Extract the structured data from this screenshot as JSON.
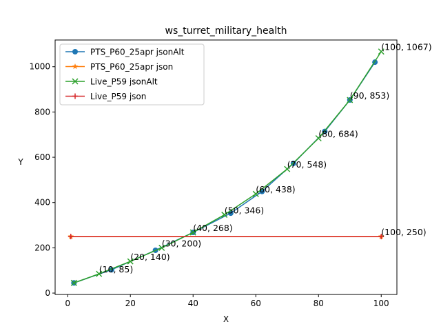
{
  "chart_data": {
    "type": "line",
    "title": "ws_turret_military_health",
    "xlabel": "X",
    "ylabel": "Y",
    "xlim": [
      -4,
      105
    ],
    "ylim": [
      -6,
      1118
    ],
    "xticks": [
      0,
      20,
      40,
      60,
      80,
      100
    ],
    "yticks": [
      0,
      200,
      400,
      600,
      800,
      1000
    ],
    "grid": false,
    "legend_position": "upper-left",
    "series": [
      {
        "name": "PTS_P60_25apr jsonAlt",
        "color": "#1f77b4",
        "marker": "circle",
        "x": [
          2,
          14,
          28,
          40,
          52,
          62,
          72,
          82,
          90,
          98
        ],
        "y": [
          45,
          103,
          189,
          268,
          353,
          449,
          573,
          714,
          853,
          1020
        ]
      },
      {
        "name": "PTS_P60_25apr json",
        "color": "#ff7f0e",
        "marker": "star",
        "x": [
          1,
          100
        ],
        "y": [
          250,
          250
        ]
      },
      {
        "name": "Live_P59 jsonAlt",
        "color": "#2ca02c",
        "marker": "x",
        "x": [
          2,
          10,
          20,
          30,
          40,
          50,
          60,
          70,
          80,
          90,
          100
        ],
        "y": [
          45,
          85,
          140,
          200,
          268,
          346,
          438,
          548,
          684,
          853,
          1067
        ]
      },
      {
        "name": "Live_P59 json",
        "color": "#d62728",
        "marker": "plus",
        "x": [
          1,
          100
        ],
        "y": [
          250,
          250
        ]
      }
    ],
    "annotations": [
      {
        "x": 10,
        "y": 85,
        "text": "(10, 85)"
      },
      {
        "x": 20,
        "y": 140,
        "text": "(20, 140)"
      },
      {
        "x": 30,
        "y": 200,
        "text": "(30, 200)"
      },
      {
        "x": 40,
        "y": 268,
        "text": "(40, 268)"
      },
      {
        "x": 50,
        "y": 346,
        "text": "(50, 346)"
      },
      {
        "x": 60,
        "y": 438,
        "text": "(60, 438)"
      },
      {
        "x": 70,
        "y": 548,
        "text": "(70, 548)"
      },
      {
        "x": 80,
        "y": 684,
        "text": "(80, 684)"
      },
      {
        "x": 90,
        "y": 853,
        "text": "(90, 853)"
      },
      {
        "x": 100,
        "y": 1067,
        "text": "(100, 1067)"
      },
      {
        "x": 100,
        "y": 250,
        "text": "(100, 250)"
      }
    ]
  }
}
